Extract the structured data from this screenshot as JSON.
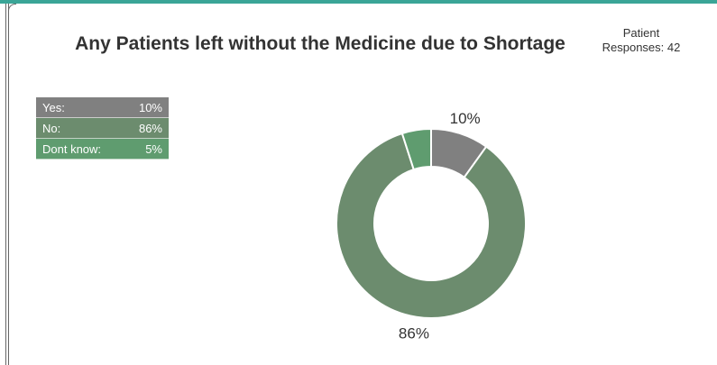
{
  "header": {
    "title": "Any Patients left without the Medicine due to Shortage",
    "responses": "Patient Responses: 42"
  },
  "legend": [
    {
      "label": "Yes:",
      "value": "10%",
      "color": "#808080"
    },
    {
      "label": "No:",
      "value": "86%",
      "color": "#6c8c6e"
    },
    {
      "label": "Dont know:",
      "value": "5%",
      "color": "#5f9c6f"
    }
  ],
  "chart_data": {
    "type": "pie",
    "title": "Any Patients left without the Medicine due to Shortage",
    "donut": true,
    "categories": [
      "Yes",
      "No",
      "Dont know"
    ],
    "values": [
      10,
      86,
      5
    ],
    "colors": [
      "#808080",
      "#6c8c6e",
      "#5f9c6f"
    ],
    "data_labels": [
      "10%",
      "86%",
      ""
    ],
    "legend_position": "top-left"
  }
}
